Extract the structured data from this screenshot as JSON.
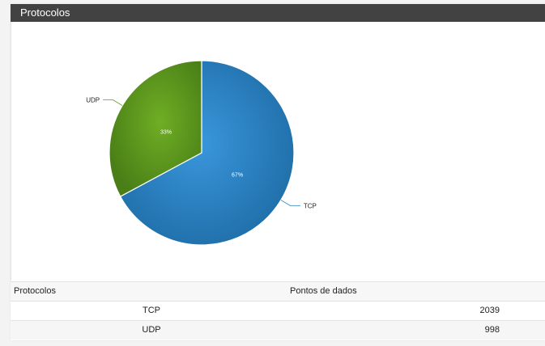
{
  "panel": {
    "title": "Protocolos"
  },
  "chart_data": {
    "type": "pie",
    "categories": [
      "TCP",
      "UDP"
    ],
    "values": [
      2039,
      998
    ],
    "percent_labels": [
      "67%",
      "33%"
    ],
    "colors": {
      "TCP": "#2d83c3",
      "UDP": "#5f9a1e"
    }
  },
  "table": {
    "headers": [
      "Protocolos",
      "Pontos de dados"
    ],
    "rows": [
      {
        "protocol": "TCP",
        "points": "2039"
      },
      {
        "protocol": "UDP",
        "points": "998"
      }
    ]
  }
}
